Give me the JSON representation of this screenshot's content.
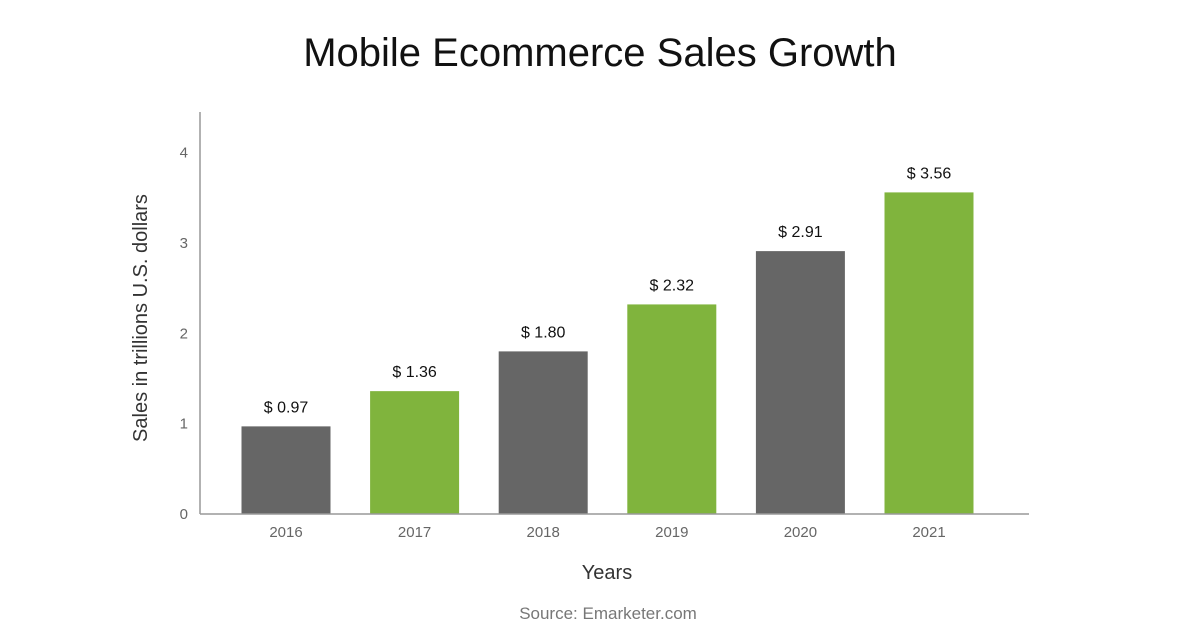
{
  "chart_data": {
    "type": "bar",
    "title": "Mobile Ecommerce Sales Growth",
    "xlabel": "Years",
    "ylabel": "Sales in trillions U.S. dollars",
    "categories": [
      "2016",
      "2017",
      "2018",
      "2019",
      "2020",
      "2021"
    ],
    "values": [
      0.97,
      1.36,
      1.8,
      2.32,
      2.91,
      3.56
    ],
    "data_labels": [
      "$ 0.97",
      "$ 1.36",
      "$ 1.80",
      "$ 2.32",
      "$ 2.91",
      "$ 3.56"
    ],
    "ylim": [
      0,
      4.45
    ],
    "yticks": [
      "0",
      "1",
      "2",
      "3",
      "4"
    ],
    "bar_colors": [
      "#666666",
      "#80b43d",
      "#666666",
      "#80b43d",
      "#666666",
      "#80b43d"
    ],
    "axis_color": "#999999",
    "grid": false,
    "legend": "none"
  },
  "source": "Source: Emarketer.com"
}
